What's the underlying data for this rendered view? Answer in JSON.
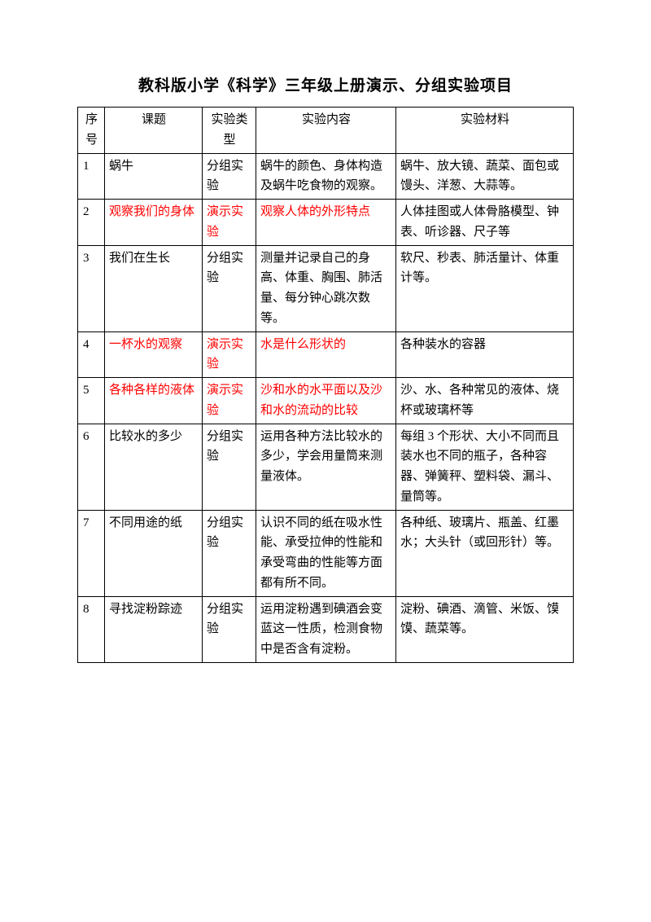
{
  "title": "教科版小学《科学》三年级上册演示、分组实验项目",
  "headers": {
    "num": "序号",
    "topic": "课题",
    "type": "实验类型",
    "content": "实验内容",
    "material": "实验材料"
  },
  "rows": {
    "r1": {
      "num": "1",
      "topic": "蜗牛",
      "type": "分组实验",
      "content": "蜗牛的颜色、身体构造及蜗牛吃食物的观察。",
      "material": "蜗牛、放大镜、蔬菜、面包或馒头、洋葱、大蒜等。"
    },
    "r2": {
      "num": "2",
      "topic": "观察我们的身体",
      "type": "演示实验",
      "content": "观察人体的外形特点",
      "material": "人体挂图或人体骨胳模型、钟表、听诊器、尺子等"
    },
    "r3": {
      "num": "3",
      "topic": "我们在生长",
      "type": "分组实验",
      "content": "测量并记录自己的身高、体重、胸围、肺活量、每分钟心跳次数等。",
      "material": "软尺、秒表、肺活量计、体重计等。"
    },
    "r4": {
      "num": "4",
      "topic": "一杯水的观察",
      "type": "演示实验",
      "content": "水是什么形状的",
      "material": "各种装水的容器"
    },
    "r5": {
      "num": "5",
      "topic": "各种各样的液体",
      "type": "演示实验",
      "content": "沙和水的水平面以及沙和水的流动的比较",
      "material": "沙、水、各种常见的液体、烧杯或玻璃杯等"
    },
    "r6": {
      "num": "6",
      "topic": "比较水的多少",
      "type": "分组实验",
      "content": "运用各种方法比较水的多少，学会用量筒来测量液体。",
      "material": "每组 3 个形状、大小不同而且装水也不同的瓶子，各种容器、弹簧秤、塑料袋、漏斗、量筒等。"
    },
    "r7": {
      "num": "7",
      "topic": "不同用途的纸",
      "type": "分组实验",
      "content": "认识不同的纸在吸水性能、承受拉伸的性能和承受弯曲的性能等方面都有所不同。",
      "material": "各种纸、玻璃片、瓶盖、红墨水；大头针（或回形针）等。"
    },
    "r8": {
      "num": "8",
      "topic": "寻找淀粉踪迹",
      "type": "分组实验",
      "content": "运用淀粉遇到碘酒会变蓝这一性质，检测食物中是否含有淀粉。",
      "material": "淀粉、碘酒、滴管、米饭、馍馍、蔬菜等。"
    }
  }
}
